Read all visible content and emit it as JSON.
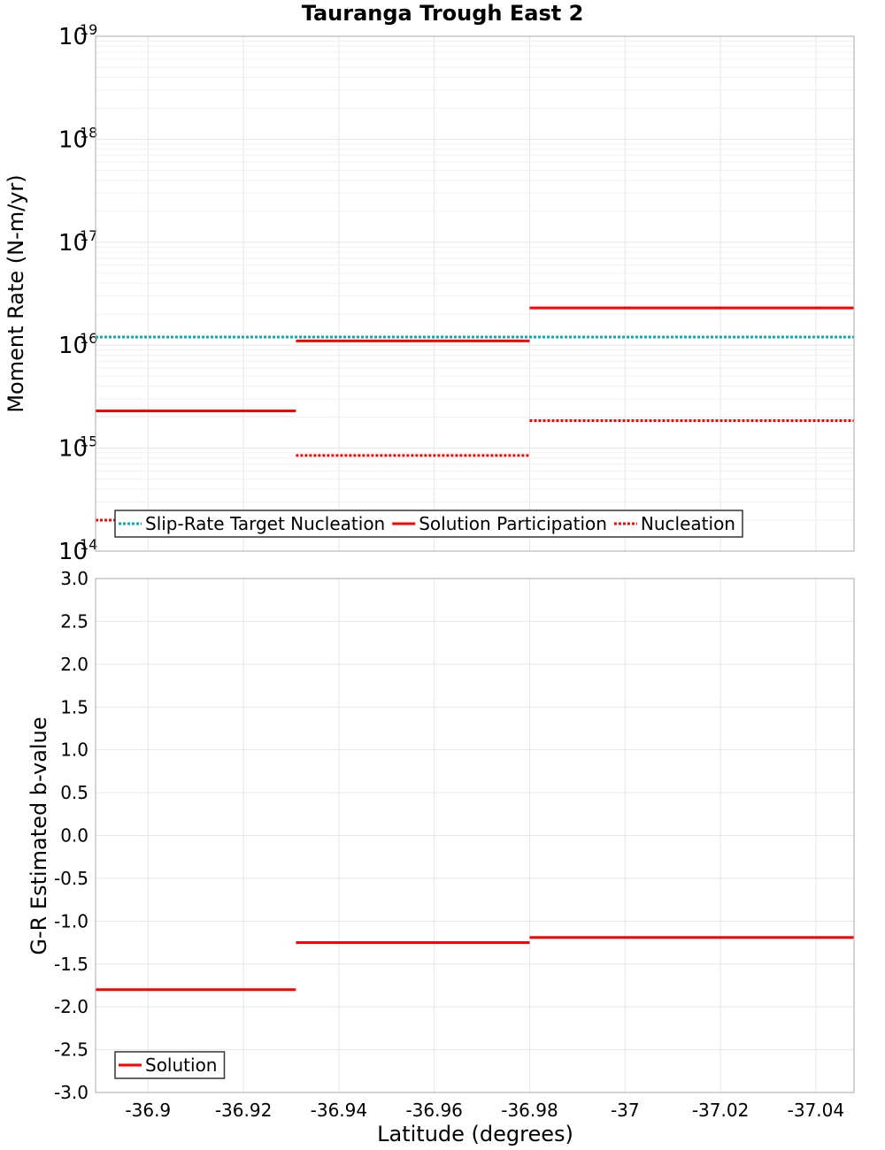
{
  "title": "Tauranga Trough East 2",
  "colors": {
    "solution": "#ff0000",
    "target": "#00b0b0",
    "grid": "#e6e6e6"
  },
  "chart_data": [
    {
      "type": "line",
      "panel": "top",
      "ylabel": "Moment Rate (N-m/yr)",
      "yscale": "log",
      "ylim_exp": [
        14,
        19
      ],
      "ytick_base": "10",
      "ytick_exponents": [
        "14",
        "15",
        "16",
        "17",
        "18",
        "19"
      ],
      "xlim": [
        -36.889,
        -37.048
      ],
      "series": [
        {
          "name": "Slip-Rate Target Nucleation",
          "style": "dotted",
          "color": "#00b0b0",
          "segments": [
            {
              "x": [
                -36.889,
                -37.048
              ],
              "y": 1.2e+16
            }
          ]
        },
        {
          "name": "Solution Participation",
          "style": "solid",
          "color": "#ff0000",
          "segments": [
            {
              "x": [
                -36.889,
                -36.931
              ],
              "y": 2300000000000000.0
            },
            {
              "x": [
                -36.931,
                -36.98
              ],
              "y": 1.1e+16
            },
            {
              "x": [
                -36.98,
                -37.048
              ],
              "y": 2.3e+16
            }
          ]
        },
        {
          "name": "Nucleation",
          "style": "dotted",
          "color": "#ff0000",
          "segments": [
            {
              "x": [
                -36.889,
                -36.931
              ],
              "y": 200000000000000.0
            },
            {
              "x": [
                -36.931,
                -36.98
              ],
              "y": 850000000000000.0
            },
            {
              "x": [
                -36.98,
                -37.048
              ],
              "y": 1850000000000000.0
            }
          ]
        }
      ],
      "legend": {
        "placement": "bottom-center",
        "entries": [
          "Slip-Rate Target Nucleation",
          "Solution Participation",
          "Nucleation"
        ]
      }
    },
    {
      "type": "line",
      "panel": "bottom",
      "ylabel": "G-R Estimated b-value",
      "xlabel": "Latitude (degrees)",
      "ylim": [
        -3.0,
        3.0
      ],
      "yticks": [
        "3.0",
        "2.5",
        "2.0",
        "1.5",
        "1.0",
        "0.5",
        "0.0",
        "-0.5",
        "-1.0",
        "-1.5",
        "-2.0",
        "-2.5",
        "-3.0"
      ],
      "xlim": [
        -36.889,
        -37.048
      ],
      "xticks": [
        "-36.9",
        "-36.92",
        "-36.94",
        "-36.96",
        "-36.98",
        "-37",
        "-37.02",
        "-37.04"
      ],
      "series": [
        {
          "name": "Solution",
          "style": "solid",
          "color": "#ff0000",
          "segments": [
            {
              "x": [
                -36.889,
                -36.931
              ],
              "y": -1.8
            },
            {
              "x": [
                -36.931,
                -36.98
              ],
              "y": -1.25
            },
            {
              "x": [
                -36.98,
                -37.048
              ],
              "y": -1.19
            }
          ]
        }
      ],
      "legend": {
        "placement": "bottom-left",
        "entries": [
          "Solution"
        ]
      }
    }
  ]
}
